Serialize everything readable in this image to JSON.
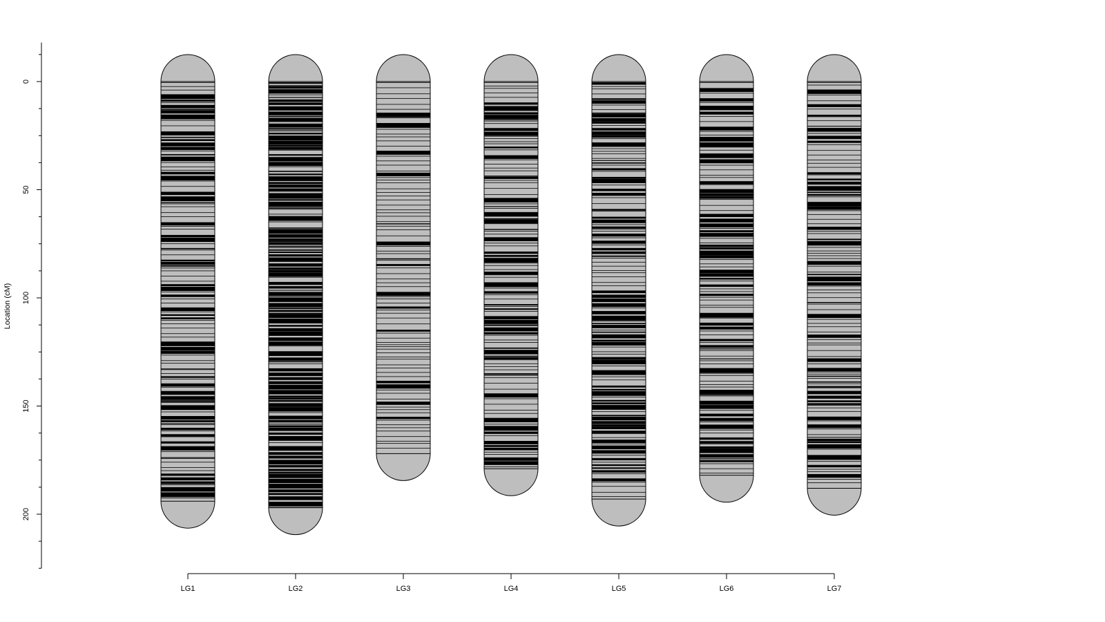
{
  "chart_data": {
    "type": "linkage-map",
    "ylabel": "Location (cM)",
    "ylim": [
      -18,
      225
    ],
    "y_ticks": [
      0,
      50,
      100,
      150,
      200
    ],
    "y_minor_step": 12.5,
    "groups": [
      {
        "name": "LG1",
        "length": 194,
        "marker_density": 0.55
      },
      {
        "name": "LG2",
        "length": 197,
        "marker_density": 0.85
      },
      {
        "name": "LG3",
        "length": 172,
        "marker_density": 0.25
      },
      {
        "name": "LG4",
        "length": 179,
        "marker_density": 0.45
      },
      {
        "name": "LG5",
        "length": 193,
        "marker_density": 0.55
      },
      {
        "name": "LG6",
        "length": 182,
        "marker_density": 0.5
      },
      {
        "name": "LG7",
        "length": 188,
        "marker_density": 0.35
      }
    ],
    "colors": {
      "chromosome_fill": "#bebebe",
      "marker": "#000000",
      "outline": "#000000"
    }
  }
}
